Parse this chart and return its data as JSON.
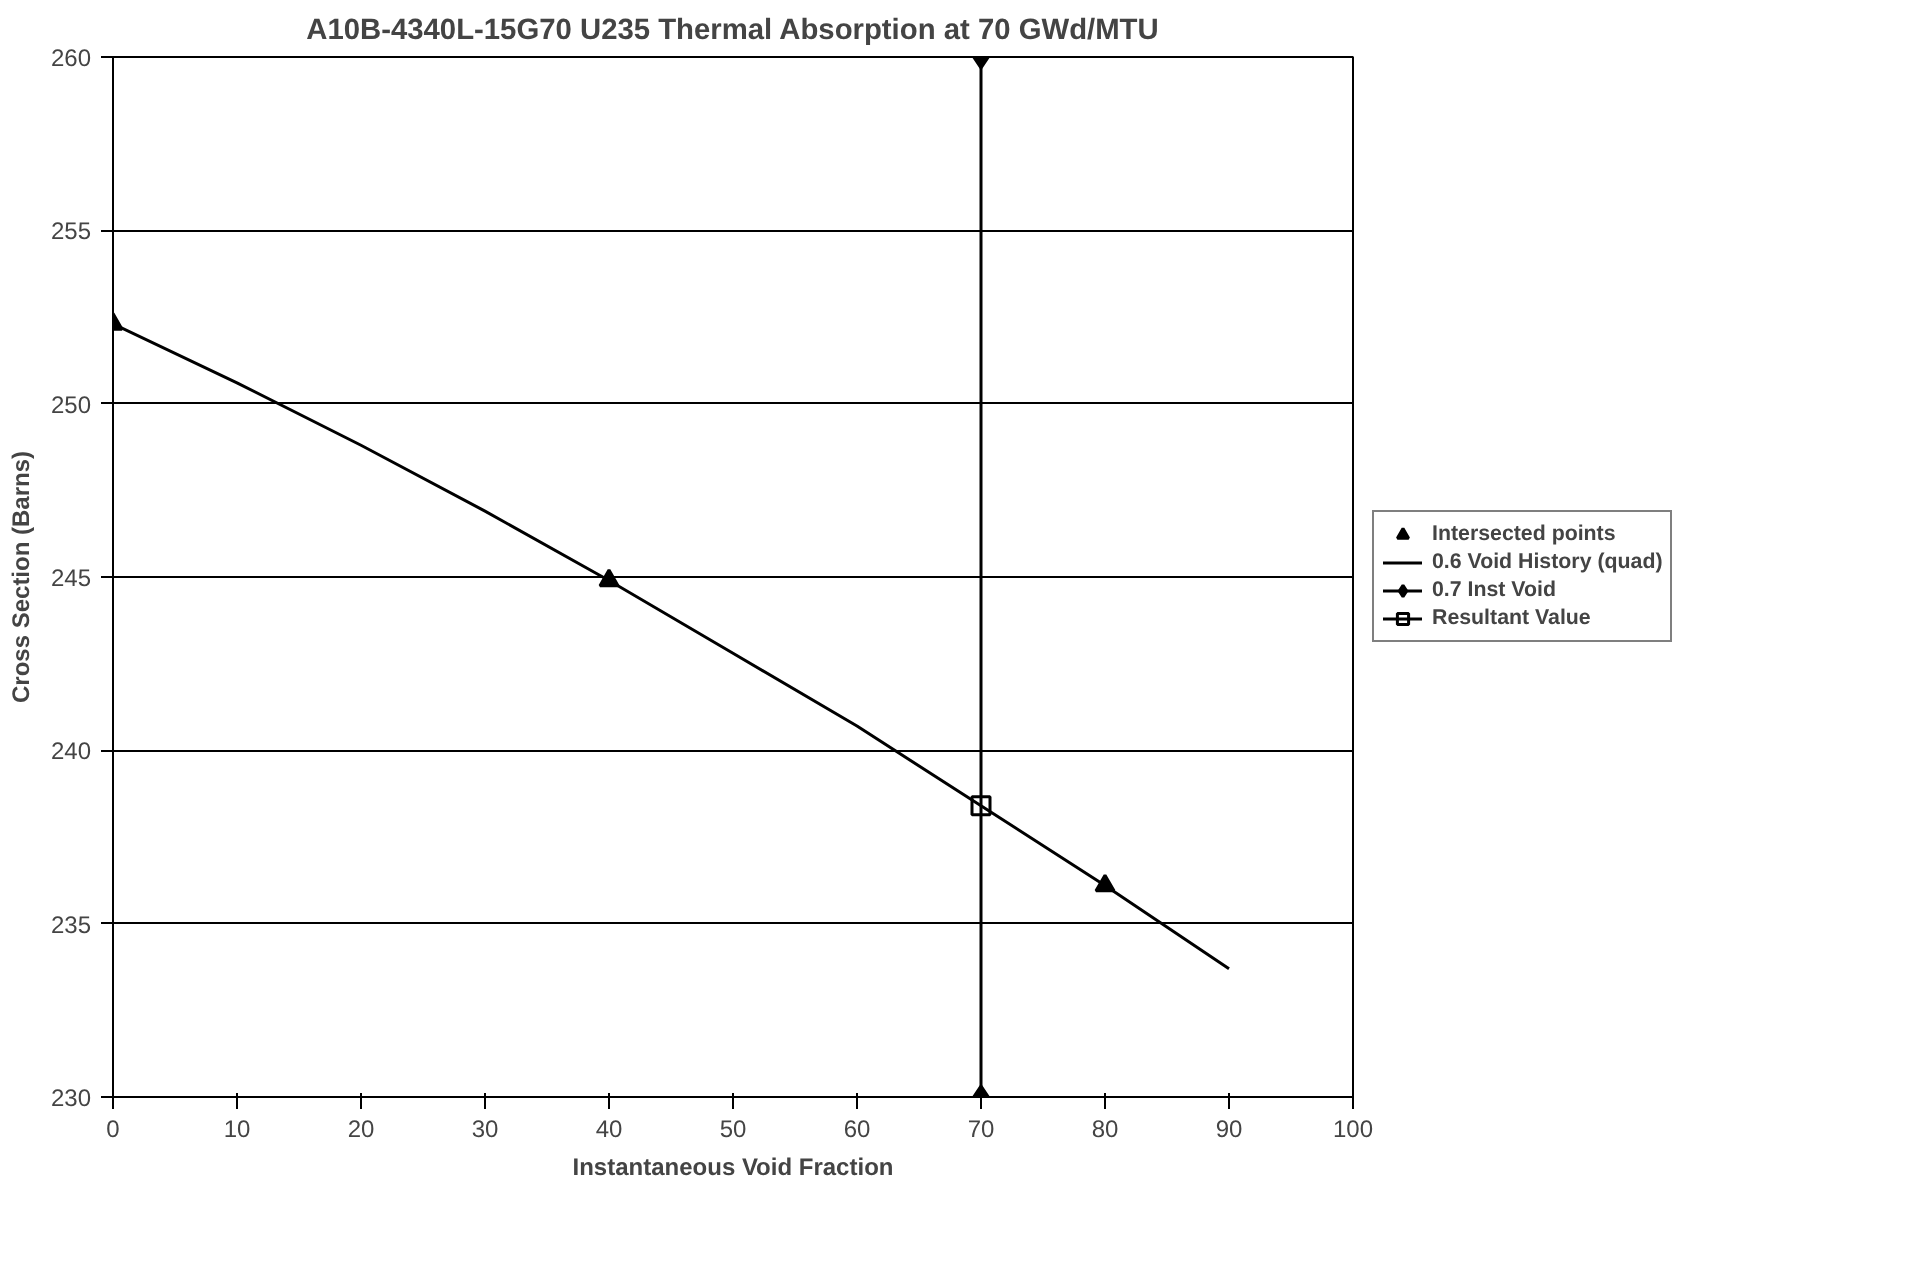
{
  "chart_data": {
    "type": "line",
    "title": "A10B-4340L-15G70 U235 Thermal Absorption at 70 GWd/MTU",
    "xlabel": "Instantaneous Void Fraction",
    "ylabel": "Cross Section (Barns)",
    "xlim": [
      0,
      100
    ],
    "xticks": [
      0,
      10,
      20,
      30,
      40,
      50,
      60,
      70,
      80,
      90,
      100
    ],
    "ylim": [
      230,
      260
    ],
    "yticks": [
      230,
      235,
      240,
      245,
      250,
      255,
      260
    ],
    "grid": "y",
    "legend": "right",
    "series": [
      {
        "name": "Intersected points",
        "type": "scatter",
        "marker": "triangle",
        "color": "#000000",
        "x": [
          0,
          40,
          80
        ],
        "values": [
          252.3,
          244.9,
          236.1
        ]
      },
      {
        "name": "0.6 Void History (quad)",
        "marker": "none",
        "color": "#000000",
        "x": [
          0,
          10,
          20,
          30,
          40,
          50,
          60,
          70,
          80,
          90
        ],
        "values": [
          252.3,
          250.6,
          248.8,
          246.9,
          244.9,
          242.8,
          240.7,
          238.4,
          236.1,
          233.7
        ]
      },
      {
        "name": "0.7 Inst Void",
        "marker": "diamond",
        "color": "#000000",
        "x": [
          70,
          70
        ],
        "values": [
          230,
          260
        ]
      },
      {
        "name": "Resultant Value",
        "marker": "square",
        "color": "#000000",
        "x": [
          70
        ],
        "values": [
          238.4
        ]
      }
    ]
  }
}
